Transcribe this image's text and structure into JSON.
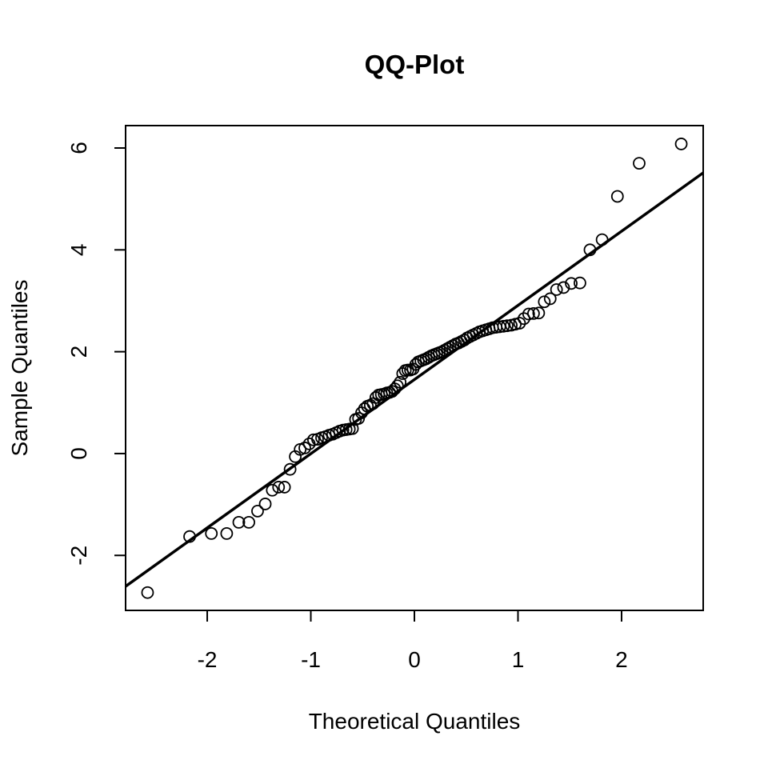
{
  "chart_data": {
    "type": "scatter",
    "title": "QQ-Plot",
    "x_label": "Theoretical Quantiles",
    "y_label": "Sample Quantiles",
    "x": [
      -2.576,
      -2.17,
      -1.96,
      -1.812,
      -1.695,
      -1.598,
      -1.514,
      -1.44,
      -1.372,
      -1.311,
      -1.254,
      -1.2,
      -1.15,
      -1.103,
      -1.058,
      -1.015,
      -0.974,
      -0.935,
      -0.896,
      -0.86,
      -0.824,
      -0.789,
      -0.755,
      -0.722,
      -0.69,
      -0.659,
      -0.628,
      -0.598,
      -0.568,
      -0.539,
      -0.51,
      -0.482,
      -0.454,
      -0.426,
      -0.399,
      -0.372,
      -0.345,
      -0.319,
      -0.292,
      -0.266,
      -0.24,
      -0.215,
      -0.189,
      -0.164,
      -0.138,
      -0.113,
      -0.088,
      -0.063,
      -0.038,
      -0.013,
      0.013,
      0.038,
      0.063,
      0.088,
      0.113,
      0.138,
      0.164,
      0.189,
      0.215,
      0.24,
      0.266,
      0.292,
      0.319,
      0.345,
      0.372,
      0.399,
      0.426,
      0.454,
      0.482,
      0.51,
      0.539,
      0.568,
      0.598,
      0.628,
      0.659,
      0.69,
      0.722,
      0.755,
      0.789,
      0.824,
      0.86,
      0.896,
      0.935,
      0.974,
      1.015,
      1.058,
      1.103,
      1.15,
      1.2,
      1.254,
      1.311,
      1.372,
      1.44,
      1.514,
      1.598,
      1.695,
      1.812,
      1.96,
      2.17,
      2.576
    ],
    "values": [
      -2.73,
      -1.63,
      -1.57,
      -1.57,
      -1.35,
      -1.35,
      -1.13,
      -0.99,
      -0.72,
      -0.66,
      -0.66,
      -0.31,
      -0.06,
      0.08,
      0.11,
      0.19,
      0.27,
      0.28,
      0.31,
      0.33,
      0.36,
      0.38,
      0.41,
      0.44,
      0.46,
      0.47,
      0.48,
      0.49,
      0.67,
      0.69,
      0.8,
      0.88,
      0.93,
      0.95,
      0.98,
      1.1,
      1.15,
      1.16,
      1.17,
      1.19,
      1.2,
      1.22,
      1.27,
      1.33,
      1.4,
      1.57,
      1.63,
      1.64,
      1.64,
      1.66,
      1.75,
      1.8,
      1.82,
      1.84,
      1.86,
      1.89,
      1.92,
      1.94,
      1.96,
      1.98,
      2.0,
      2.03,
      2.06,
      2.09,
      2.12,
      2.15,
      2.17,
      2.2,
      2.23,
      2.27,
      2.3,
      2.33,
      2.36,
      2.39,
      2.41,
      2.43,
      2.45,
      2.47,
      2.48,
      2.49,
      2.5,
      2.51,
      2.52,
      2.54,
      2.56,
      2.65,
      2.74,
      2.75,
      2.76,
      2.98,
      3.04,
      3.22,
      3.26,
      3.34,
      3.35,
      4.0,
      4.2,
      5.05,
      5.7,
      6.08
    ],
    "color": "#000000",
    "reference_line": {
      "x": [
        -2.788,
        2.788
      ],
      "values": [
        -2.607,
        5.513
      ]
    },
    "xlim": [
      -2.788,
      2.788
    ],
    "ylim": [
      -3.08,
      6.44
    ],
    "xticks": [
      -2,
      -1,
      0,
      1,
      2
    ],
    "yticks": [
      -2,
      0,
      2,
      4,
      6
    ]
  }
}
